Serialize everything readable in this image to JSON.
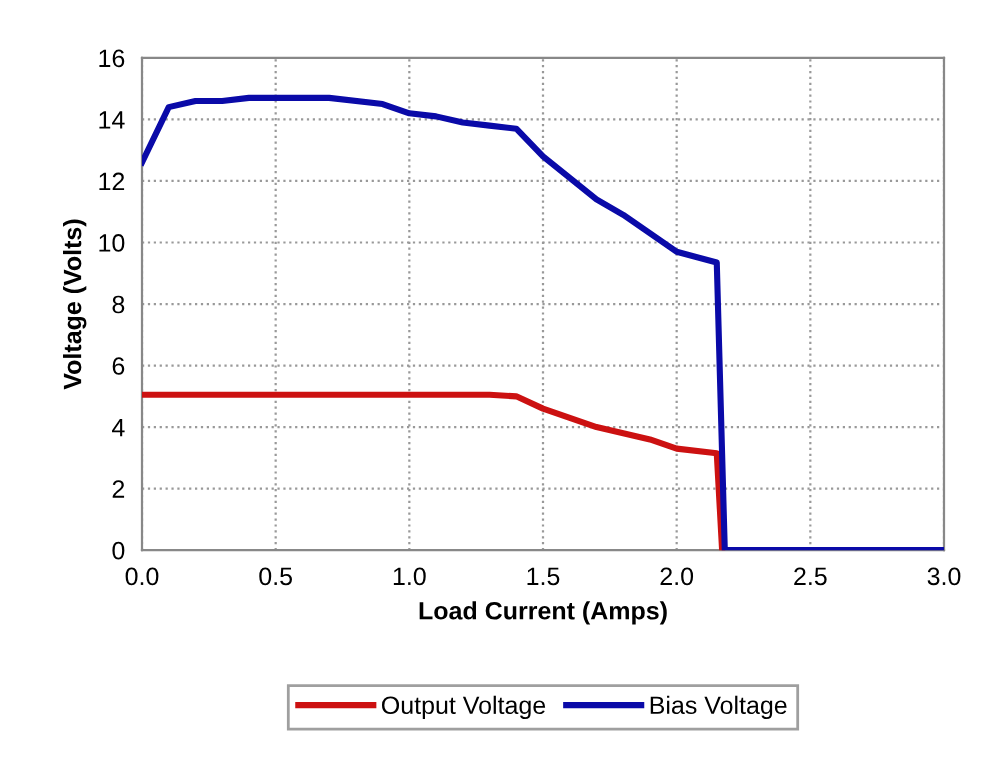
{
  "chart_data": {
    "type": "line",
    "xlabel": "Load Current (Amps)",
    "ylabel": "Voltage (Volts)",
    "xlim": [
      0,
      3
    ],
    "ylim": [
      0,
      16
    ],
    "xticks": [
      {
        "value": 0,
        "label": "0.0"
      },
      {
        "value": 0.5,
        "label": "0.5"
      },
      {
        "value": 1,
        "label": "1.0"
      },
      {
        "value": 1.5,
        "label": "1.5"
      },
      {
        "value": 2,
        "label": "2.0"
      },
      {
        "value": 2.5,
        "label": "2.5"
      },
      {
        "value": 3,
        "label": "3.0"
      }
    ],
    "yticks": [
      0,
      2,
      4,
      6,
      8,
      10,
      12,
      14,
      16
    ],
    "grid": true,
    "legend": "bottom",
    "line_style": "solid",
    "marker": "none",
    "series": [
      {
        "name": "Output Voltage",
        "color": "#cc1111",
        "x": [
          0,
          0.5,
          1.0,
          1.3,
          1.4,
          1.5,
          1.6,
          1.7,
          1.8,
          1.9,
          2.0,
          2.15,
          2.17
        ],
        "values": [
          5.05,
          5.05,
          5.05,
          5.05,
          5.0,
          4.6,
          4.3,
          4.0,
          3.8,
          3.6,
          3.3,
          3.15,
          0
        ]
      },
      {
        "name": "Bias Voltage",
        "color": "#0a0aa8",
        "x": [
          0,
          0.1,
          0.2,
          0.3,
          0.4,
          0.7,
          0.9,
          1.0,
          1.1,
          1.2,
          1.3,
          1.4,
          1.5,
          1.6,
          1.7,
          1.8,
          1.9,
          2.0,
          2.15,
          2.18,
          3.0
        ],
        "values": [
          12.6,
          14.4,
          14.6,
          14.6,
          14.7,
          14.7,
          14.5,
          14.2,
          14.1,
          13.9,
          13.8,
          13.7,
          12.8,
          12.1,
          11.4,
          10.9,
          10.3,
          9.7,
          9.35,
          0,
          0
        ]
      }
    ]
  }
}
